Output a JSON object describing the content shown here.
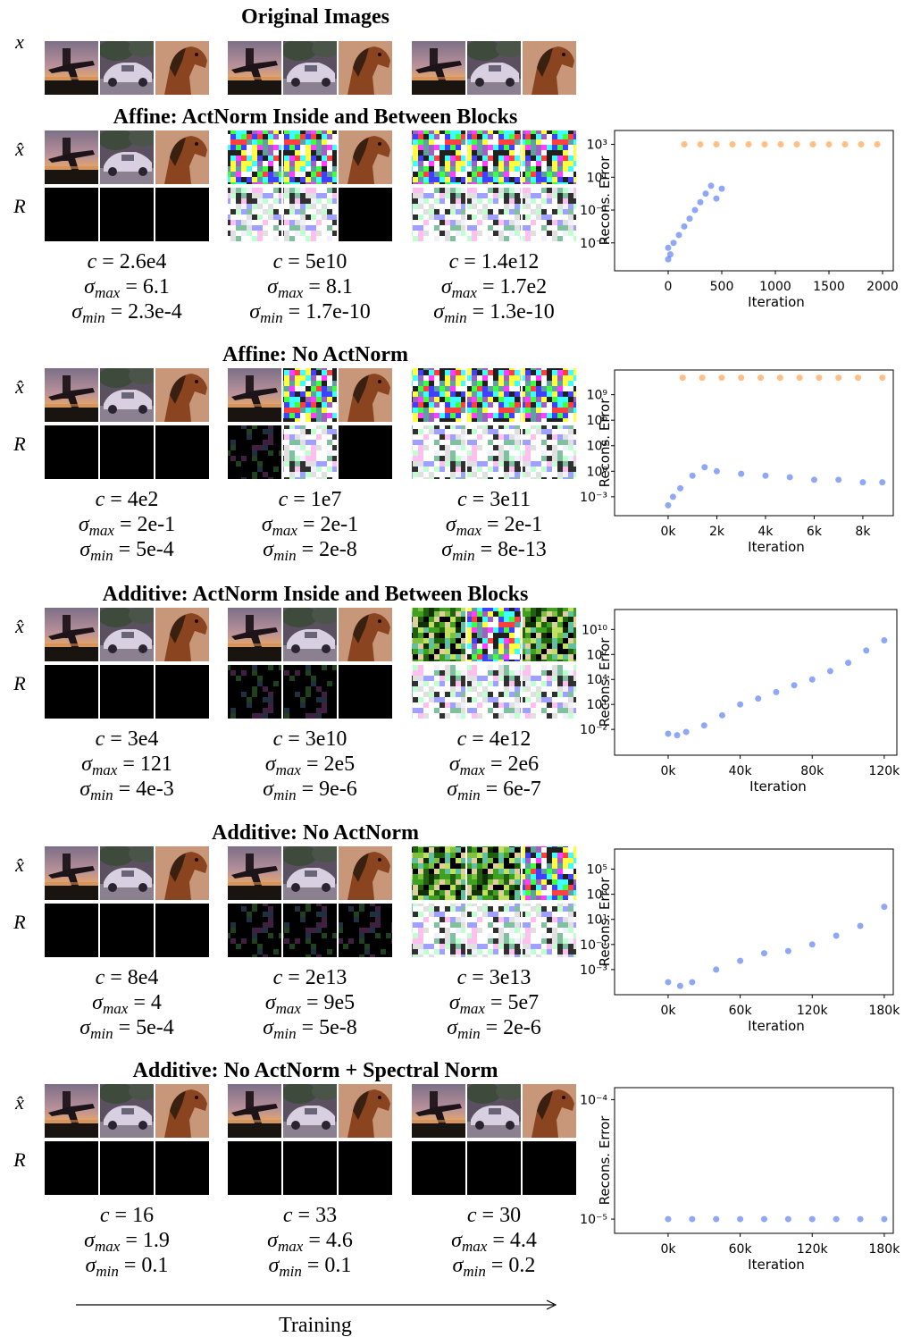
{
  "original": {
    "title": "Original Images",
    "row_label": "x"
  },
  "stat_symbols": {
    "c": {
      "base": "c"
    },
    "sigma_max": {
      "base": "σ",
      "sub": "max"
    },
    "sigma_min": {
      "base": "σ",
      "sub": "min"
    }
  },
  "sections": [
    {
      "title": "Affine: ActNorm Inside and Between Blocks",
      "row_labels": [
        "x̂",
        "R"
      ],
      "stats": [
        {
          "c": "= 2.6e4",
          "sigma_max": "= 6.1",
          "sigma_min": "= 2.3e-4"
        },
        {
          "c": "= 5e10",
          "sigma_max": "= 8.1",
          "sigma_min": "= 1.7e-10"
        },
        {
          "c": "= 1.4e12",
          "sigma_max": "= 1.7e2",
          "sigma_min": "= 1.3e-10"
        }
      ],
      "chart": {
        "type": "scatter",
        "y_label": "Recons. Error",
        "x_label": "Iteration",
        "log_y": true,
        "xlim": [
          -500,
          2100
        ],
        "ylim": [
          2e-05,
          7000
        ],
        "xticks": [
          0,
          500,
          1000,
          1500,
          2000
        ],
        "yticks": [
          {
            "value": 0.001,
            "label": "10⁻³"
          },
          {
            "value": 0.1,
            "label": "10⁻¹"
          },
          {
            "value": 10,
            "label": "10¹"
          },
          {
            "value": 1000,
            "label": "10³"
          }
        ],
        "series": [
          {
            "color": "#2050f0",
            "x": [
              0,
              0,
              20,
              50,
              100,
              150,
              200,
              250,
              300,
              350,
              400,
              450,
              500
            ],
            "values": [
              0.0001,
              0.0005,
              0.0002,
              0.001,
              0.003,
              0.01,
              0.03,
              0.1,
              0.3,
              1,
              3,
              0.5,
              2
            ]
          },
          {
            "color": "#ff7f0e",
            "x": [
              150,
              300,
              450,
              600,
              750,
              900,
              1050,
              1200,
              1350,
              1500,
              1650,
              1800,
              1950
            ],
            "values": [
              1000,
              1000,
              1000,
              1000,
              1000,
              1000,
              1000,
              1000,
              1000,
              1000,
              1000,
              1000,
              1000
            ]
          }
        ]
      }
    },
    {
      "title": "Affine: No ActNorm",
      "row_labels": [
        "x̂",
        "R"
      ],
      "stats": [
        {
          "c": "= 4e2",
          "sigma_max": "= 2e-1",
          "sigma_min": "= 5e-4"
        },
        {
          "c": "= 1e7",
          "sigma_max": "= 2e-1",
          "sigma_min": "= 2e-8"
        },
        {
          "c": "= 3e11",
          "sigma_max": "= 2e-1",
          "sigma_min": "= 8e-13"
        }
      ],
      "chart": {
        "type": "scatter",
        "y_label": "Recons. Error",
        "x_label": "Iteration",
        "log_y": true,
        "xlim": [
          -2200,
          9250
        ],
        "ylim": [
          6e-06,
          800000000000
        ],
        "xticks": [
          {
            "value": 0,
            "label": "0k"
          },
          {
            "value": 2000,
            "label": "2k"
          },
          {
            "value": 4000,
            "label": "4k"
          },
          {
            "value": 6000,
            "label": "6k"
          },
          {
            "value": 8000,
            "label": "8k"
          }
        ],
        "yticks": [
          {
            "value": 0.001,
            "label": "10⁻³"
          },
          {
            "value": 1,
            "label": "10⁰"
          },
          {
            "value": 1000,
            "label": "10³"
          },
          {
            "value": 1000000,
            "label": "10⁶"
          },
          {
            "value": 1000000000,
            "label": "10⁹"
          }
        ],
        "series": [
          {
            "color": "#2050f0",
            "x": [
              0,
              200,
              500,
              1000,
              1500,
              2000,
              3000,
              4000,
              5000,
              6000,
              7000,
              8000,
              8800
            ],
            "values": [
              0.0001,
              0.001,
              0.01,
              0.3,
              3,
              1,
              0.5,
              0.3,
              0.2,
              0.1,
              0.1,
              0.05,
              0.05
            ]
          },
          {
            "color": "#ff7f0e",
            "x": [
              600,
              1400,
              2200,
              3000,
              3800,
              4600,
              5400,
              6200,
              7000,
              7800,
              8800
            ],
            "values": [
              100000000000,
              100000000000,
              100000000000,
              100000000000,
              100000000000,
              100000000000,
              100000000000,
              100000000000,
              100000000000,
              100000000000,
              100000000000
            ]
          }
        ]
      }
    },
    {
      "title": "Additive: ActNorm Inside and Between Blocks",
      "row_labels": [
        "x̂",
        "R"
      ],
      "stats": [
        {
          "c": "= 3e4",
          "sigma_max": "= 121",
          "sigma_min": "= 4e-3"
        },
        {
          "c": "= 3e10",
          "sigma_max": "= 2e5",
          "sigma_min": "= 9e-6"
        },
        {
          "c": "= 4e12",
          "sigma_max": "= 2e6",
          "sigma_min": "= 6e-7"
        }
      ],
      "chart": {
        "type": "scatter",
        "y_label": "Recons. Error",
        "x_label": "Iteration",
        "log_y": true,
        "xlim": [
          -29750,
          127000
        ],
        "ylim": [
          8e-06,
          2500000000000
        ],
        "xticks": [
          {
            "value": 0,
            "label": "0k"
          },
          {
            "value": 40000,
            "label": "40k"
          },
          {
            "value": 80000,
            "label": "80k"
          },
          {
            "value": 120000,
            "label": "120k"
          }
        ],
        "yticks": [
          {
            "value": 0.01,
            "label": "10⁻²"
          },
          {
            "value": 10,
            "label": "10¹"
          },
          {
            "value": 10000,
            "label": "10⁴"
          },
          {
            "value": 10000000,
            "label": "10⁷"
          },
          {
            "value": 10000000000,
            "label": "10¹⁰"
          }
        ],
        "series": [
          {
            "color": "#2050f0",
            "x": [
              0,
              5000,
              10000,
              20000,
              30000,
              40000,
              50000,
              60000,
              70000,
              80000,
              90000,
              100000,
              110000,
              120000
            ],
            "values": [
              0.003,
              0.002,
              0.005,
              0.03,
              0.5,
              10,
              50,
              300,
              2000,
              10000,
              100000,
              1000000,
              30000000,
              500000000
            ]
          }
        ]
      }
    },
    {
      "title": "Additive: No ActNorm",
      "row_labels": [
        "x̂",
        "R"
      ],
      "stats": [
        {
          "c": "= 8e4",
          "sigma_max": "= 4",
          "sigma_min": "= 5e-4"
        },
        {
          "c": "= 2e13",
          "sigma_max": "= 9e5",
          "sigma_min": "= 5e-8"
        },
        {
          "c": "= 3e13",
          "sigma_max": "= 5e7",
          "sigma_min": "= 2e-6"
        }
      ],
      "chart": {
        "type": "scatter",
        "y_label": "Recons. Error",
        "x_label": "Iteration",
        "log_y": true,
        "xlim": [
          -44600,
          187500
        ],
        "ylim": [
          1e-05,
          4000000
        ],
        "xticks": [
          {
            "value": 0,
            "label": "0k"
          },
          {
            "value": 60000,
            "label": "60k"
          },
          {
            "value": 120000,
            "label": "120k"
          },
          {
            "value": 180000,
            "label": "180k"
          }
        ],
        "yticks": [
          {
            "value": 0.001,
            "label": "10⁻³"
          },
          {
            "value": 0.1,
            "label": "10⁻¹"
          },
          {
            "value": 10,
            "label": "10¹"
          },
          {
            "value": 1000,
            "label": "10³"
          },
          {
            "value": 100000,
            "label": "10⁵"
          }
        ],
        "series": [
          {
            "color": "#2050f0",
            "x": [
              0,
              10000,
              20000,
              40000,
              60000,
              80000,
              100000,
              120000,
              140000,
              160000,
              180000
            ],
            "values": [
              0.0001,
              5e-05,
              0.0001,
              0.001,
              0.005,
              0.02,
              0.03,
              0.1,
              0.5,
              3,
              100
            ]
          }
        ]
      }
    },
    {
      "title": "Additive: No ActNorm + Spectral Norm",
      "row_labels": [
        "x̂",
        "R"
      ],
      "stats": [
        {
          "c": "= 16",
          "sigma_max": "= 1.9",
          "sigma_min": "= 0.1"
        },
        {
          "c": "= 33",
          "sigma_max": "= 4.6",
          "sigma_min": "= 0.1"
        },
        {
          "c": "= 30",
          "sigma_max": "= 4.4",
          "sigma_min": "= 0.2"
        }
      ],
      "chart": {
        "type": "scatter",
        "y_label": "Recons. Error",
        "x_label": "Iteration",
        "log_y": true,
        "xlim": [
          -44600,
          187500
        ],
        "ylim": [
          7.6e-06,
          0.000126
        ],
        "xticks": [
          {
            "value": 0,
            "label": "0k"
          },
          {
            "value": 60000,
            "label": "60k"
          },
          {
            "value": 120000,
            "label": "120k"
          },
          {
            "value": 180000,
            "label": "180k"
          }
        ],
        "yticks": [
          {
            "value": 1e-05,
            "label": "10⁻⁵"
          },
          {
            "value": 0.0001,
            "label": "10⁻⁴"
          }
        ],
        "series": [
          {
            "color": "#2050f0",
            "x": [
              0,
              20000,
              40000,
              60000,
              80000,
              100000,
              120000,
              140000,
              160000,
              180000
            ],
            "values": [
              1e-05,
              1e-05,
              1e-05,
              1e-05,
              1e-05,
              1e-05,
              1e-05,
              1e-05,
              1e-05,
              1e-05
            ]
          }
        ]
      }
    }
  ],
  "footer": {
    "label": "Training"
  }
}
